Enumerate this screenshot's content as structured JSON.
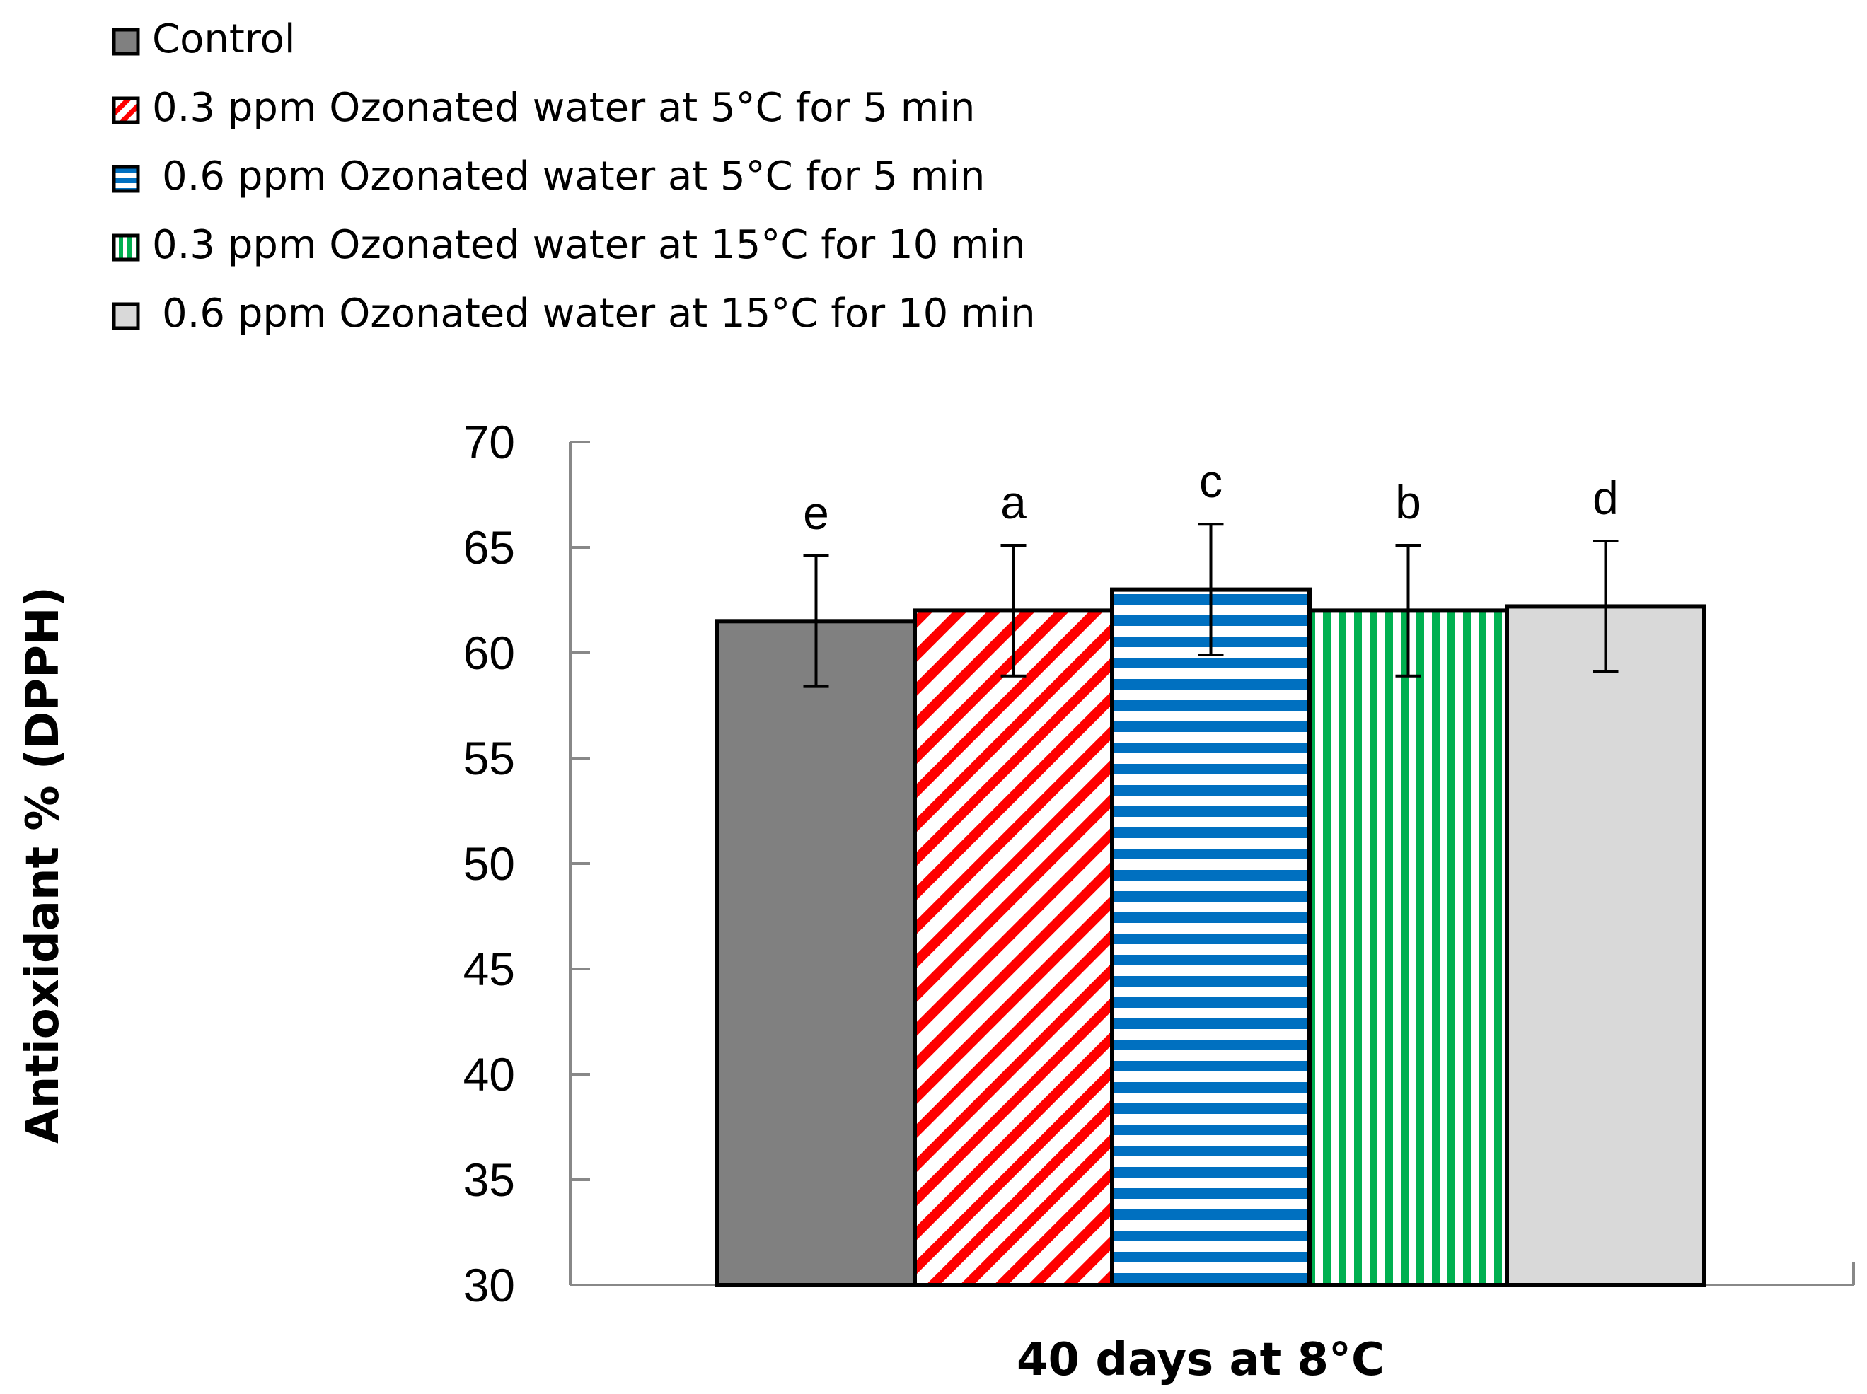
{
  "chart_data": {
    "type": "bar",
    "title": "",
    "xlabel": "40 days at 8°C",
    "ylabel": "Antioxidant % (DPPH)",
    "ylim": [
      30,
      70
    ],
    "yticks": [
      30,
      35,
      40,
      45,
      50,
      55,
      60,
      65,
      70
    ],
    "grid": false,
    "legend_position": "top-left",
    "categories": [
      "40 days at 8°C"
    ],
    "series": [
      {
        "name": "Control",
        "value": 61.5,
        "error": 3.1,
        "letter": "e",
        "pattern": "solid",
        "color": "#808080"
      },
      {
        "name": "0.3 ppm Ozonated water at 5°C for 5 min",
        "value": 62.0,
        "error": 3.1,
        "letter": "a",
        "pattern": "diagonal",
        "color": "#ff0000"
      },
      {
        "name": "0.6 ppm Ozonated water at 5°C for 5 min",
        "value": 63.0,
        "error": 3.1,
        "letter": "c",
        "pattern": "horizontal",
        "color": "#0070c0"
      },
      {
        "name": "0.3 ppm Ozonated water at 15°C for 10 min",
        "value": 62.0,
        "error": 3.1,
        "letter": "b",
        "pattern": "vertical",
        "color": "#00b050"
      },
      {
        "name": "0.6 ppm Ozonated water at 15°C for 10 min",
        "value": 62.2,
        "error": 3.1,
        "letter": "d",
        "pattern": "solid",
        "color": "#d9d9d9"
      }
    ]
  }
}
